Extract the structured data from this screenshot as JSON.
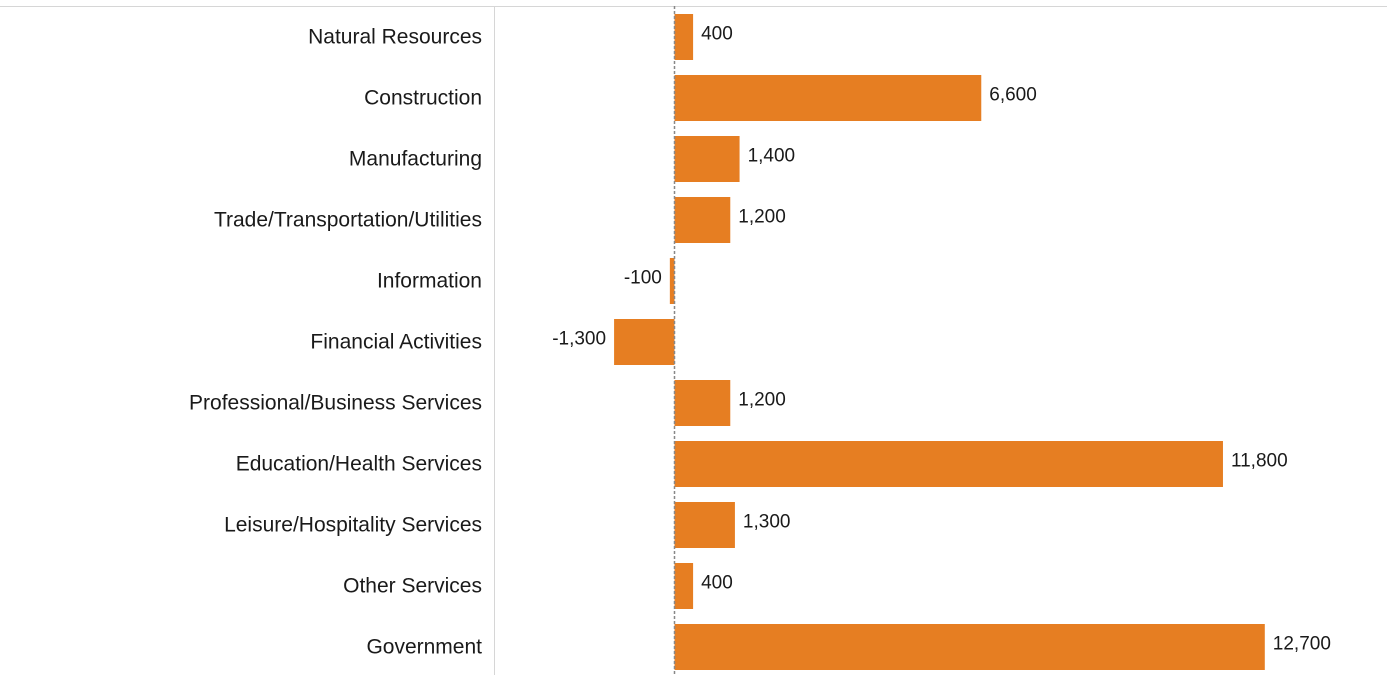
{
  "chart_data": {
    "type": "bar",
    "orientation": "horizontal",
    "categories": [
      "Natural Resources",
      "Construction",
      "Manufacturing",
      "Trade/Transportation/Utilities",
      "Information",
      "Financial Activities",
      "Professional/Business Services",
      "Education/Health Services",
      "Leisure/Hospitality Services",
      "Other Services",
      "Government"
    ],
    "values": [
      400,
      6600,
      1400,
      1200,
      -100,
      -1300,
      1200,
      11800,
      1300,
      400,
      12700
    ],
    "value_labels": [
      "400",
      "6,600",
      "1,400",
      "1,200",
      "-100",
      "-1,300",
      "1,200",
      "11,800",
      "1,300",
      "400",
      "12,700"
    ],
    "title": "",
    "xlabel": "",
    "ylabel": "",
    "grid": false,
    "legend": "none",
    "bar_color": "#E67E22",
    "zero_line_color": "#888888"
  }
}
